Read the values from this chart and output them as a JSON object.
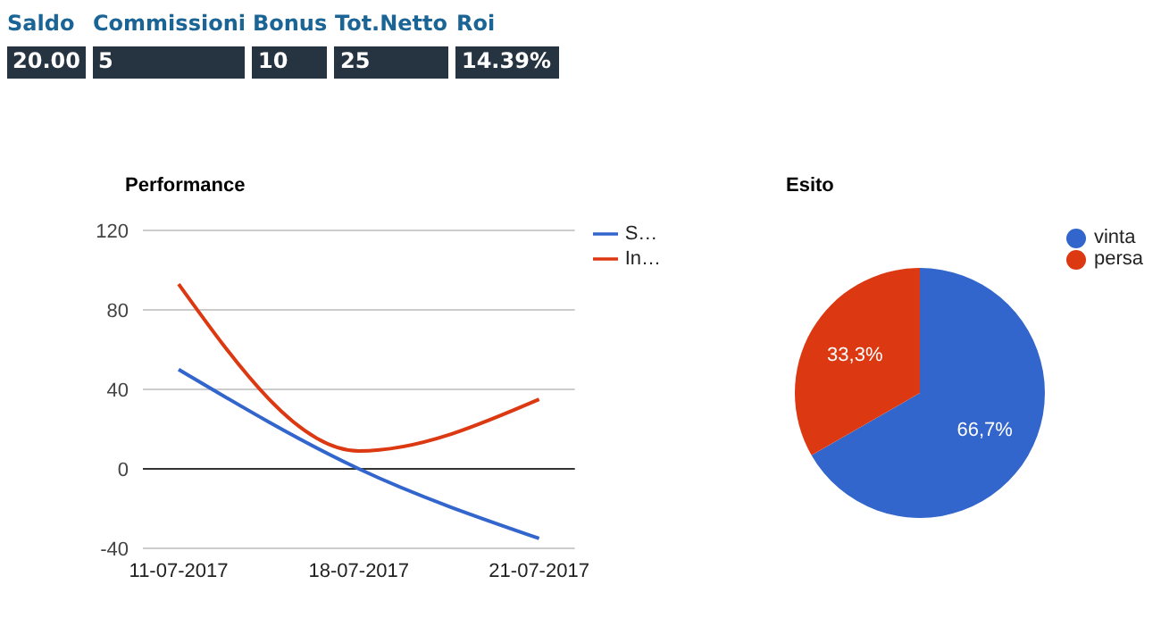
{
  "chart_data": [
    {
      "type": "other",
      "categories": [
        "Saldo",
        "Commissioni",
        "Bonus",
        "Tot.Netto",
        "Roi"
      ],
      "value_labels": [
        "20.00",
        "5",
        "10",
        "25",
        "14.39%"
      ]
    },
    {
      "type": "line",
      "title": "Performance",
      "categories": [
        "11-07-2017",
        "18-07-2017",
        "21-07-2017"
      ],
      "series": [
        {
          "name": "S…",
          "color": "#3366cc",
          "values": [
            50,
            0,
            -35
          ],
          "type": "line"
        },
        {
          "name": "In…",
          "color": "#dc3912",
          "values": [
            93,
            9,
            35
          ],
          "type": "line"
        }
      ],
      "ylim": [
        -40,
        120
      ],
      "yticks": [
        -40,
        0,
        40,
        80,
        120
      ],
      "grid": "y",
      "legend": "right",
      "ref_lines": [
        {
          "axis": "y",
          "value": 0,
          "color": "#333333"
        }
      ]
    },
    {
      "type": "pie",
      "title": "Esito",
      "categories": [
        "vinta",
        "persa"
      ],
      "values": [
        66.7,
        33.3
      ],
      "colors": [
        "#3366cc",
        "#dc3912"
      ],
      "value_labels": [
        "66,7%",
        "33,3%"
      ],
      "legend": "right"
    }
  ]
}
